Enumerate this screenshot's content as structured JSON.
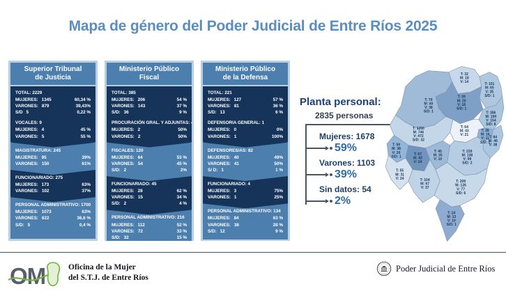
{
  "title": "Mapa de género del Poder Judicial de Entre Ríos 2025",
  "colors": {
    "title_blue": "#5b8ebf",
    "band_dark_navy": "#16345a",
    "band_mid_blue": "#4c7fae",
    "panel_frame_light_blue": "#b9cfe2",
    "stats_navy": "#1b4178",
    "percent_blue": "#2d6ca6",
    "logo_green": "#6fb43e"
  },
  "panels": [
    {
      "id": "superior-tribunal-de-justicia",
      "title_lines": [
        "Superior Tribunal",
        "de Justicia"
      ],
      "sections": [
        {
          "tone": "dark",
          "groups": [
            {
              "header": "TOTAL: 2229",
              "rows": [
                {
                  "label": "MUJERES:",
                  "value": "1345",
                  "pct": "60,34 %"
                },
                {
                  "label": "VARONES:",
                  "value": "879",
                  "pct": "39,43%"
                },
                {
                  "label": "S/D",
                  "value": "5",
                  "pct": "0,22 %"
                }
              ]
            },
            {
              "header": "VOCALES: 9",
              "rows": [
                {
                  "label": "MUJERES:",
                  "value": "4",
                  "pct": "45 %"
                },
                {
                  "label": "VARONES:",
                  "value": "5",
                  "pct": "55 %"
                }
              ]
            }
          ]
        },
        {
          "tone": "mid",
          "groups": [
            {
              "header": "MAGISTRATURA: 245",
              "rows": [
                {
                  "label": "MUJERES:",
                  "value": "95",
                  "pct": "39%"
                },
                {
                  "label": "VARONES:",
                  "value": "150",
                  "pct": "61%"
                }
              ]
            }
          ]
        },
        {
          "tone": "dark",
          "groups": [
            {
              "header": "FUNCIONARIADO: 275",
              "rows": [
                {
                  "label": "MUJERES:",
                  "value": "173",
                  "pct": "63%"
                },
                {
                  "label": "VARONES:",
                  "value": "102",
                  "pct": "37%"
                }
              ]
            }
          ]
        },
        {
          "tone": "mid",
          "groups": [
            {
              "header": "PERSONAL ADMINISTRATIVO: 1700",
              "rows": [
                {
                  "label": "MUJERES:",
                  "value": "1073",
                  "pct": "63%"
                },
                {
                  "label": "VARONES:",
                  "value": "622",
                  "pct": "36,6 %"
                },
                {
                  "label": "S/D:",
                  "value": "5",
                  "pct": "0,4 %"
                }
              ]
            }
          ]
        }
      ]
    },
    {
      "id": "ministerio-publico-fiscal",
      "title_lines": [
        "Ministerio Público",
        "Fiscal"
      ],
      "sections": [
        {
          "tone": "dark",
          "groups": [
            {
              "header": "TOTAL: 385",
              "rows": [
                {
                  "label": "MUJERES:",
                  "value": "206",
                  "pct": "54 %"
                },
                {
                  "label": "VARONES:",
                  "value": "143",
                  "pct": "37 %"
                },
                {
                  "label": "S/D:",
                  "value": "36",
                  "pct": "9 %"
                }
              ]
            },
            {
              "header": "PROCURACIÓN GRAL. Y ADJUNTAS: 4",
              "rows": [
                {
                  "label": "MUJERES:",
                  "value": "2",
                  "pct": "50%"
                },
                {
                  "label": "VARONES:",
                  "value": "2",
                  "pct": "50%"
                }
              ]
            }
          ]
        },
        {
          "tone": "mid",
          "groups": [
            {
              "header": "FISCALES: 120",
              "rows": [
                {
                  "label": "MUJERES:",
                  "value": "64",
                  "pct": "53 %"
                },
                {
                  "label": "VARONES:",
                  "value": "54",
                  "pct": "45 %"
                },
                {
                  "label": "S/D:",
                  "value": "2",
                  "pct": "2%"
                }
              ]
            }
          ]
        },
        {
          "tone": "dark",
          "groups": [
            {
              "header": "FUNCIONARIADO: 45",
              "rows": [
                {
                  "label": "MUJERES:",
                  "value": "28",
                  "pct": "62 %"
                },
                {
                  "label": "VARONES:",
                  "value": "15",
                  "pct": "34 %"
                },
                {
                  "label": "S/D:",
                  "value": "2",
                  "pct": "4 %"
                }
              ]
            }
          ]
        },
        {
          "tone": "mid",
          "groups": [
            {
              "header": "PERSONAL ADMINISTRATIVO: 216",
              "rows": [
                {
                  "label": "MUJERES:",
                  "value": "112",
                  "pct": "52 %"
                },
                {
                  "label": "VARONES:",
                  "value": "72",
                  "pct": "33 %"
                },
                {
                  "label": "S/D:",
                  "value": "32",
                  "pct": "15 %"
                }
              ]
            }
          ]
        }
      ]
    },
    {
      "id": "ministerio-publico-de-la-defensa",
      "title_lines": [
        "Ministerio Público",
        "de la Defensa"
      ],
      "sections": [
        {
          "tone": "dark",
          "groups": [
            {
              "header": "TOTAL: 221",
              "rows": [
                {
                  "label": "MUJERES:",
                  "value": "127",
                  "pct": "57 %"
                },
                {
                  "label": "VARONES:",
                  "value": "81",
                  "pct": "36 %"
                },
                {
                  "label": "S/D:",
                  "value": "13",
                  "pct": "6 %"
                }
              ]
            },
            {
              "header": "DEFENSORIA GENERAL: 1",
              "rows": [
                {
                  "label": "MUJERES:",
                  "value": "0",
                  "pct": "0%"
                },
                {
                  "label": "VARONES:",
                  "value": "1",
                  "pct": "100%"
                }
              ]
            }
          ]
        },
        {
          "tone": "mid",
          "groups": [
            {
              "header": "DEFENSORES/AS: 82",
              "rows": [
                {
                  "label": "MUJERES:",
                  "value": "40",
                  "pct": "49%"
                },
                {
                  "label": "VARONES:",
                  "value": "41",
                  "pct": "50%"
                },
                {
                  "label": "S/ D:",
                  "value": "1",
                  "pct": "1 %"
                }
              ]
            }
          ]
        },
        {
          "tone": "dark",
          "groups": [
            {
              "header": "FUNCIONARIADO: 4",
              "rows": [
                {
                  "label": "MUJERES:",
                  "value": "3",
                  "pct": "75%"
                },
                {
                  "label": "VARONES:",
                  "value": "1",
                  "pct": "25%"
                }
              ]
            }
          ]
        },
        {
          "tone": "mid",
          "groups": [
            {
              "header": "PERSONAL ADMINISTRATIVO: 134",
              "rows": [
                {
                  "label": "MUJERES:",
                  "value": "84",
                  "pct": "63 %"
                },
                {
                  "label": "VARONES:",
                  "value": "38",
                  "pct": "28 %"
                },
                {
                  "label": "S/D:",
                  "value": "12",
                  "pct": "9 %"
                }
              ]
            }
          ]
        }
      ]
    }
  ],
  "stats": {
    "title": "Planta personal:",
    "total": "2835 personas",
    "items": [
      {
        "label": "Mujeres: 1678",
        "pct": "59%"
      },
      {
        "label": "Varones: 1103",
        "pct": "39%"
      },
      {
        "label": "Sin datos: 54",
        "pct": "2%"
      }
    ]
  },
  "map": {
    "legend": {
      "t": "T:",
      "m": "M:",
      "v": "V:",
      "sd": "S/D:"
    },
    "departments": [
      {
        "id": "la-paz",
        "t": 79,
        "m": 40,
        "v": 38,
        "sd": 1
      },
      {
        "id": "feliciano",
        "t": 32,
        "m": 18,
        "v": 14
      },
      {
        "id": "federacion",
        "t": 101,
        "m": 65,
        "v": 35,
        "sd": 1
      },
      {
        "id": "federal",
        "t": 39,
        "m": 20,
        "v": 18,
        "sd": 1
      },
      {
        "id": "concordia",
        "t": 356,
        "m": 194,
        "v": 154,
        "sd": 8
      },
      {
        "id": "parana",
        "t": 1250,
        "m": 746,
        "v": 472,
        "sd": 32
      },
      {
        "id": "villaguay",
        "t": 64,
        "m": 43,
        "v": 21
      },
      {
        "id": "san-salvador",
        "t": 28,
        "m": 16,
        "v": 11,
        "sd": 1
      },
      {
        "id": "colon",
        "t": 84,
        "m": 46,
        "v": 38
      },
      {
        "id": "diamante",
        "t": 59,
        "m": 38,
        "v": 20,
        "sd": 1
      },
      {
        "id": "nogoya",
        "t": 67,
        "m": 43,
        "v": 24
      },
      {
        "id": "tala",
        "t": 45,
        "m": 35,
        "v": 10
      },
      {
        "id": "uruguay",
        "t": 239,
        "m": 138,
        "v": 99,
        "sd": 2
      },
      {
        "id": "victoria",
        "t": 55,
        "m": 31,
        "v": 24
      },
      {
        "id": "gualeguay",
        "t": 104,
        "m": 67,
        "v": 37
      },
      {
        "id": "gualeguaychu",
        "t": 209,
        "m": 126,
        "v": 77,
        "sd": 6
      },
      {
        "id": "islas",
        "t": 24,
        "m": 13,
        "v": 10,
        "sd": 1
      }
    ]
  },
  "footer": {
    "left": {
      "logo_text": "OM",
      "line1": "Oficina de la Mujer",
      "line2": "del S.T.J. de Entre Ríos"
    },
    "right": {
      "label": "Poder Judicial de Entre Ríos"
    }
  },
  "chart_data": [
    {
      "type": "table",
      "title": "Superior Tribunal de Justicia",
      "columns": [
        "categoría",
        "total",
        "mujeres",
        "varones",
        "s/d",
        "pct_mujeres",
        "pct_varones",
        "pct_sd"
      ],
      "rows": [
        [
          "TOTAL",
          2229,
          1345,
          879,
          5,
          60.34,
          39.43,
          0.22
        ],
        [
          "VOCALES",
          9,
          4,
          5,
          null,
          45,
          55,
          null
        ],
        [
          "MAGISTRATURA",
          245,
          95,
          150,
          null,
          39,
          61,
          null
        ],
        [
          "FUNCIONARIADO",
          275,
          173,
          102,
          null,
          63,
          37,
          null
        ],
        [
          "PERSONAL ADMINISTRATIVO",
          1700,
          1073,
          622,
          5,
          63,
          36.6,
          0.4
        ]
      ]
    },
    {
      "type": "table",
      "title": "Ministerio Público Fiscal",
      "columns": [
        "categoría",
        "total",
        "mujeres",
        "varones",
        "s/d",
        "pct_mujeres",
        "pct_varones",
        "pct_sd"
      ],
      "rows": [
        [
          "TOTAL",
          385,
          206,
          143,
          36,
          54,
          37,
          9
        ],
        [
          "PROCURACIÓN GRAL. Y ADJUNTAS",
          4,
          2,
          2,
          null,
          50,
          50,
          null
        ],
        [
          "FISCALES",
          120,
          64,
          54,
          2,
          53,
          45,
          2
        ],
        [
          "FUNCIONARIADO",
          45,
          28,
          15,
          2,
          62,
          34,
          4
        ],
        [
          "PERSONAL ADMINISTRATIVO",
          216,
          112,
          72,
          32,
          52,
          33,
          15
        ]
      ]
    },
    {
      "type": "table",
      "title": "Ministerio Público de la Defensa",
      "columns": [
        "categoría",
        "total",
        "mujeres",
        "varones",
        "s/d",
        "pct_mujeres",
        "pct_varones",
        "pct_sd"
      ],
      "rows": [
        [
          "TOTAL",
          221,
          127,
          81,
          13,
          57,
          36,
          6
        ],
        [
          "DEFENSORIA GENERAL",
          1,
          0,
          1,
          null,
          0,
          100,
          null
        ],
        [
          "DEFENSORES/AS",
          82,
          40,
          41,
          1,
          49,
          50,
          1
        ],
        [
          "FUNCIONARIADO",
          4,
          3,
          1,
          null,
          75,
          25,
          null
        ],
        [
          "PERSONAL ADMINISTRATIVO",
          134,
          84,
          38,
          12,
          63,
          28,
          9
        ]
      ]
    },
    {
      "type": "pie",
      "title": "Planta personal",
      "total": 2835,
      "labels": [
        "Mujeres",
        "Varones",
        "Sin datos"
      ],
      "values": [
        1678,
        1103,
        54
      ],
      "percents": [
        59,
        39,
        2
      ]
    },
    {
      "type": "table",
      "title": "Mapa por departamento (T total, M mujeres, V varones, S/D sin datos)",
      "columns": [
        "departamento",
        "T",
        "M",
        "V",
        "S/D"
      ],
      "rows": [
        [
          "la-paz",
          79,
          40,
          38,
          1
        ],
        [
          "feliciano",
          32,
          18,
          14,
          null
        ],
        [
          "federacion",
          101,
          65,
          35,
          1
        ],
        [
          "federal",
          39,
          20,
          18,
          1
        ],
        [
          "concordia",
          356,
          194,
          154,
          8
        ],
        [
          "parana",
          1250,
          746,
          472,
          32
        ],
        [
          "villaguay",
          64,
          43,
          21,
          null
        ],
        [
          "san-salvador",
          28,
          16,
          11,
          1
        ],
        [
          "colon",
          84,
          46,
          38,
          null
        ],
        [
          "diamante",
          59,
          38,
          20,
          1
        ],
        [
          "nogoya",
          67,
          43,
          24,
          null
        ],
        [
          "tala",
          45,
          35,
          10,
          null
        ],
        [
          "uruguay",
          239,
          138,
          99,
          2
        ],
        [
          "victoria",
          55,
          31,
          24,
          null
        ],
        [
          "gualeguay",
          104,
          67,
          37,
          null
        ],
        [
          "gualeguaychu",
          209,
          126,
          77,
          6
        ],
        [
          "islas",
          24,
          13,
          10,
          1
        ]
      ]
    }
  ]
}
